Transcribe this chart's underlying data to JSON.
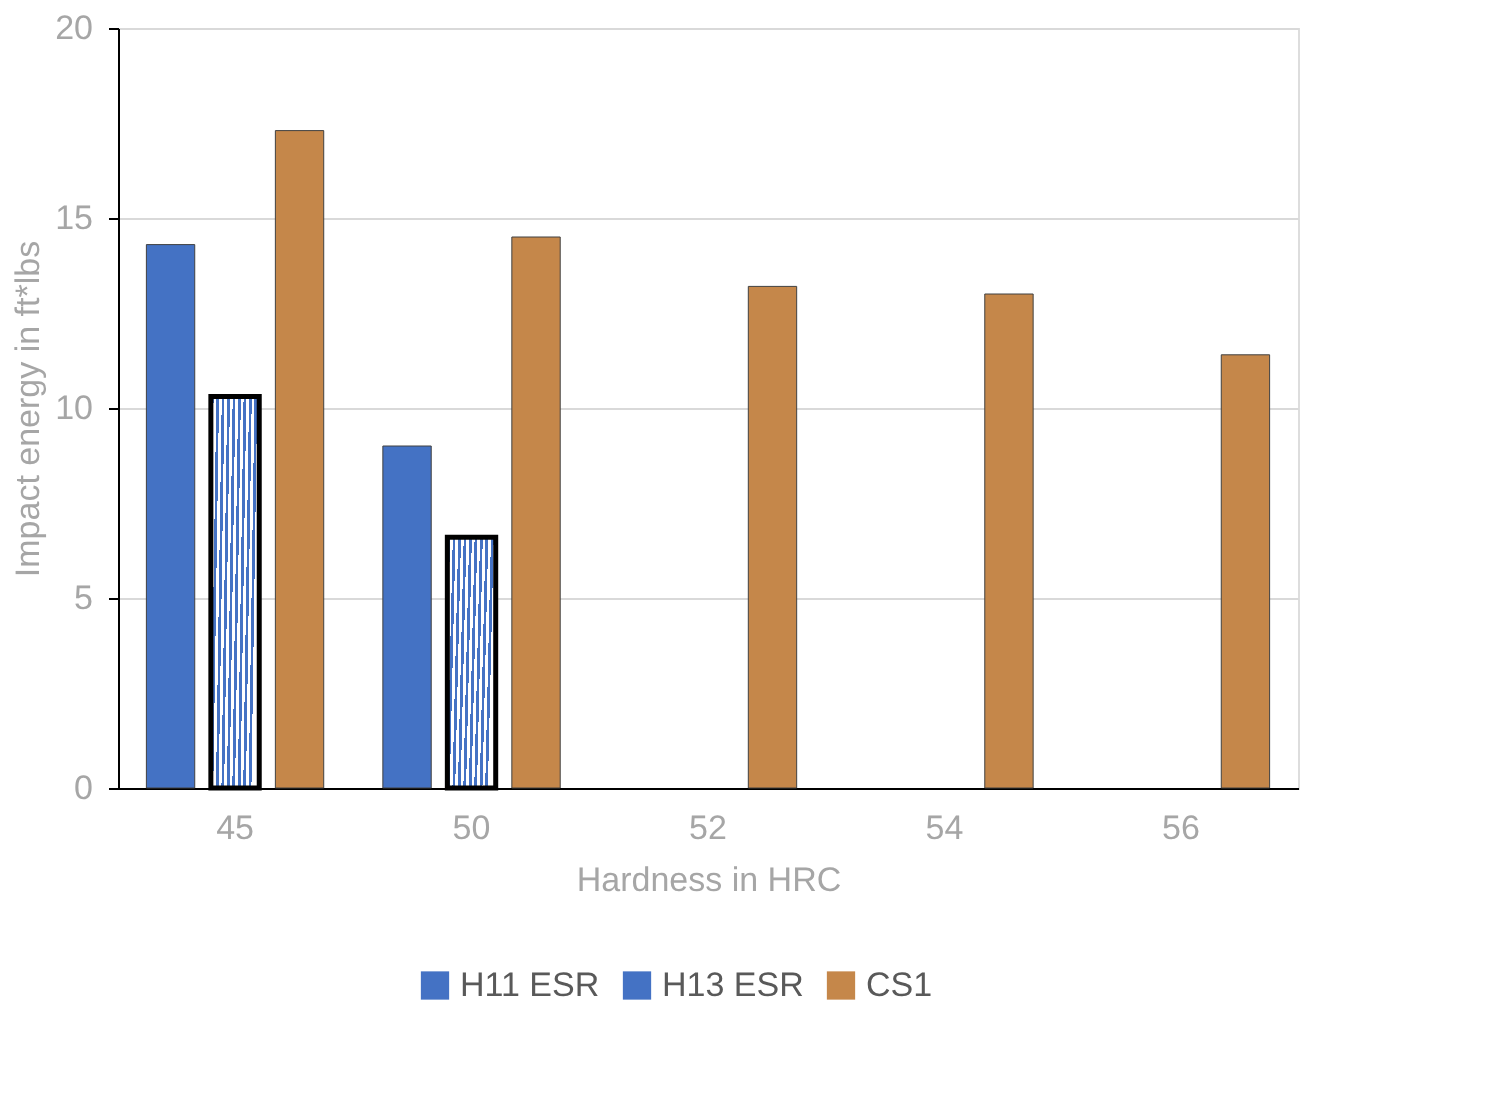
{
  "chart_data": {
    "type": "bar",
    "xlabel": "Hardness in HRC",
    "ylabel": "Impact energy in ft*lbs",
    "categories": [
      "45",
      "50",
      "52",
      "54",
      "56"
    ],
    "series": [
      {
        "name": "H11 ESR",
        "color": "#4472c4",
        "values": [
          14.3,
          9.0,
          null,
          null,
          null
        ]
      },
      {
        "name": "H13 ESR",
        "color": "#4472c4",
        "values": [
          10.3,
          6.6,
          null,
          null,
          null
        ]
      },
      {
        "name": "CS1",
        "color": "#c5874a",
        "values": [
          17.3,
          14.5,
          13.2,
          13.0,
          11.4
        ]
      }
    ],
    "ylim": [
      0,
      20
    ],
    "yticks": [
      0,
      5,
      10,
      15,
      20
    ],
    "grid": "y",
    "legend": "bottom"
  }
}
